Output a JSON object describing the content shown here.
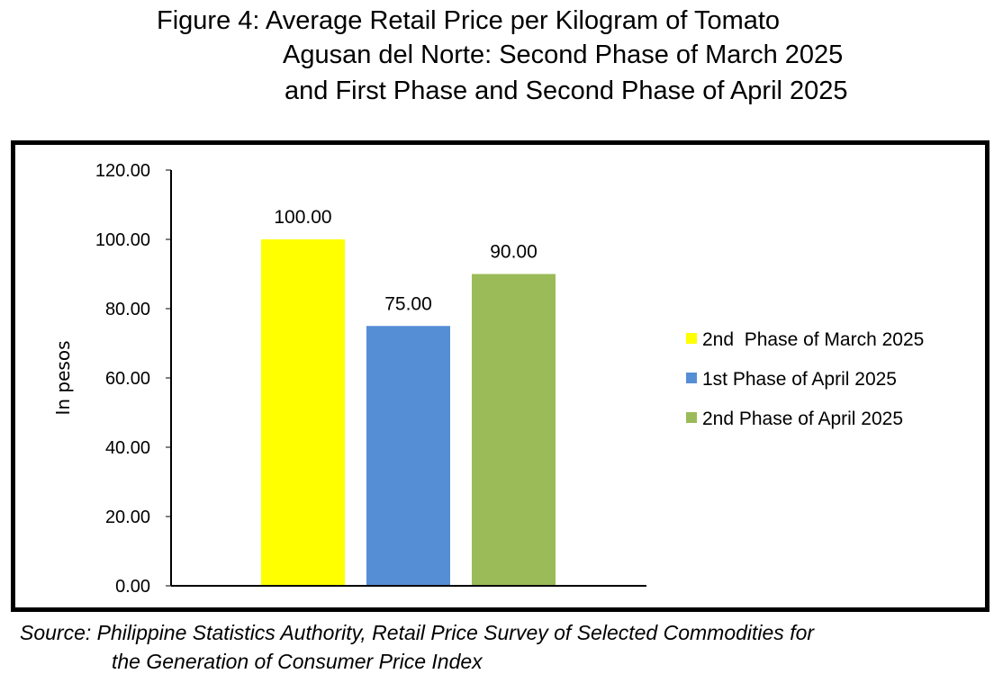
{
  "title": {
    "line1": "Figure 4: Average Retail Price per Kilogram of Tomato",
    "line2": "Agusan del Norte: Second Phase of March 2025",
    "line3": "and First Phase and Second Phase of April 2025"
  },
  "source": {
    "line1": "Source: Philippine Statistics Authority, Retail Price Survey of Selected Commodities for",
    "line2": "the Generation of Consumer Price Index"
  },
  "chart_data": {
    "type": "bar",
    "ylabel": "In pesos",
    "ylim": [
      0,
      120
    ],
    "yticks": [
      0,
      20,
      40,
      60,
      80,
      100,
      120
    ],
    "ytick_labels": [
      "0.00",
      "20.00",
      "40.00",
      "60.00",
      "80.00",
      "100.00",
      "120.00"
    ],
    "grid": false,
    "legend_position": "right",
    "series": [
      {
        "name": "2nd  Phase of March 2025",
        "value": 100,
        "label": "100.00",
        "color": "#ffff00"
      },
      {
        "name": "1st Phase of April 2025",
        "value": 75,
        "label": "75.00",
        "color": "#558ed5"
      },
      {
        "name": "2nd Phase of April 2025",
        "value": 90,
        "label": "90.00",
        "color": "#9bbb59"
      }
    ]
  }
}
